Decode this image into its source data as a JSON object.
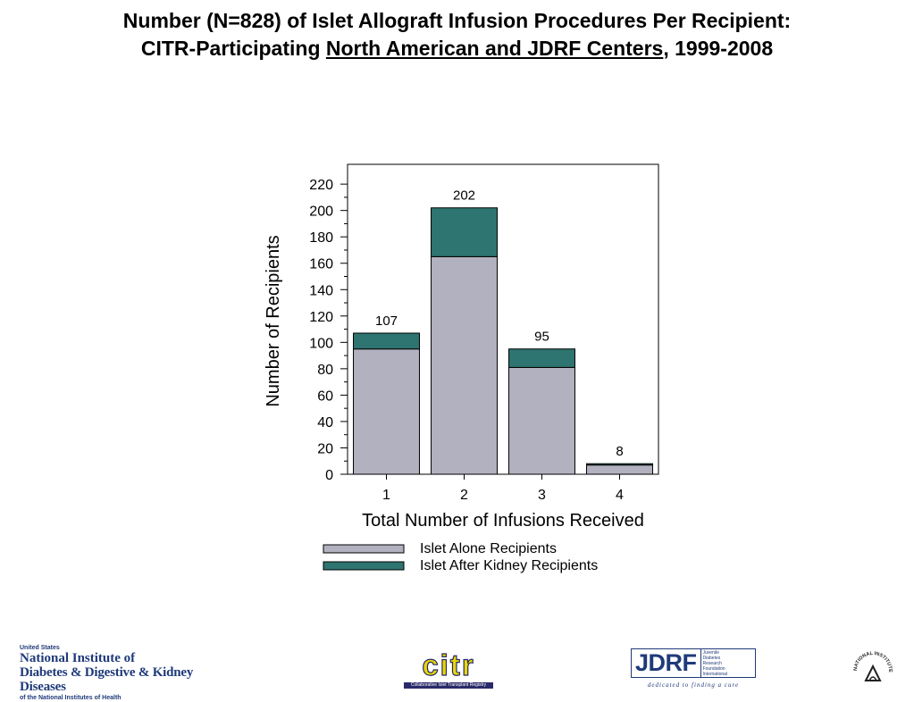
{
  "title": {
    "line1": "Number (N=828) of Islet Allograft Infusion Procedures Per Recipient:",
    "line2_prefix": "CITR-Participating ",
    "line2_underlined": "North American and JDRF Centers",
    "line2_suffix": ", 1999-2008"
  },
  "chart_data": {
    "type": "bar",
    "stacked": true,
    "categories": [
      "1",
      "2",
      "3",
      "4"
    ],
    "series": [
      {
        "name": "Islet Alone Recipients",
        "values": [
          95,
          165,
          81,
          7
        ],
        "color": "#b2b1bf"
      },
      {
        "name": "Islet After Kidney Recipients",
        "values": [
          12,
          37,
          14,
          1
        ],
        "color": "#2e7470"
      }
    ],
    "totals": [
      107,
      202,
      95,
      8
    ],
    "xlabel": "Total Number of Infusions Received",
    "ylabel": "Number of Recipients",
    "ylim": [
      0,
      235
    ],
    "yticks": [
      0,
      20,
      40,
      60,
      80,
      100,
      120,
      140,
      160,
      180,
      200,
      220
    ],
    "grid": false,
    "legend": "bottom"
  },
  "logos": {
    "nidk": {
      "line0": "United States",
      "line1": "National Institute of",
      "line2": "Diabetes & Digestive & Kidney Diseases",
      "line3": "of the National Institutes of Health"
    },
    "citr": {
      "word": "citr",
      "tagline": "Collaborative Islet Transplant Registry"
    },
    "jdrf": {
      "word": "JDRF",
      "side": [
        "Juvenile",
        "Diabetes",
        "Research",
        "Foundation",
        "International"
      ],
      "tagline": "dedicated to finding a cure"
    },
    "nih": {
      "text": "NATIONAL INSTITUTES OF HEALTH"
    }
  }
}
